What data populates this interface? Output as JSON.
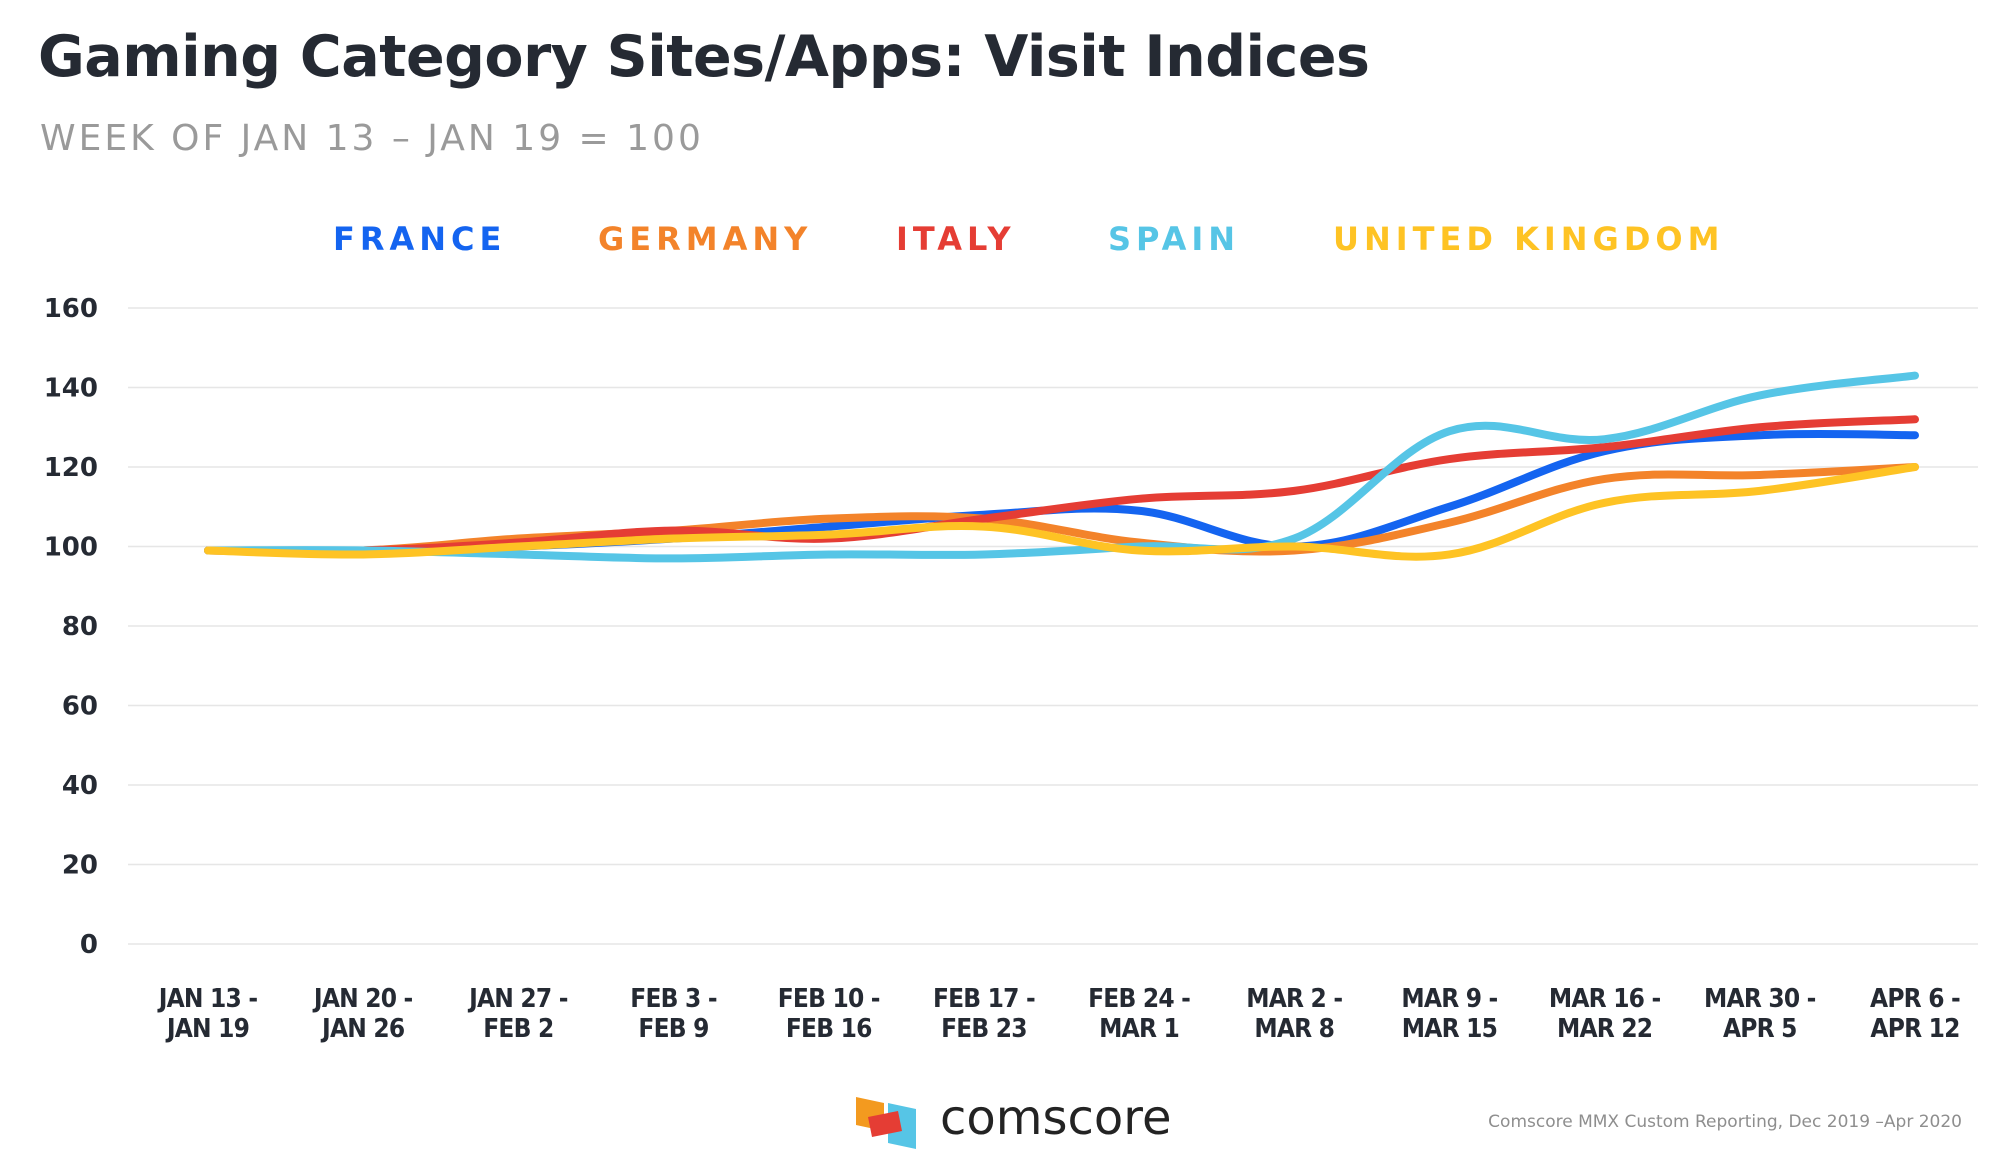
{
  "title": "Gaming Category Sites/Apps: Visit Indices",
  "subtitle": "WEEK OF JAN 13 – JAN 19 = 100",
  "source": "Comscore MMX Custom Reporting, Dec 2019 –Apr 2020",
  "brand": "comscore",
  "chart_data": {
    "type": "line",
    "title": "Gaming Category Sites/Apps: Visit Indices",
    "subtitle": "WEEK OF JAN 13 – JAN 19 = 100",
    "xlabel": "",
    "ylabel": "",
    "ylim": [
      0,
      160
    ],
    "yticks": [
      0,
      20,
      40,
      60,
      80,
      100,
      120,
      140,
      160
    ],
    "grid": true,
    "legend_position": "top",
    "categories": [
      [
        "JAN 13 -",
        "JAN 19"
      ],
      [
        "JAN 20 -",
        "JAN 26"
      ],
      [
        "JAN 27 -",
        "FEB 2"
      ],
      [
        "FEB 3 -",
        "FEB 9"
      ],
      [
        "FEB 10 -",
        "FEB 16"
      ],
      [
        "FEB 17 -",
        "FEB 23"
      ],
      [
        "FEB 24 -",
        "MAR 1"
      ],
      [
        "MAR 2 -",
        "MAR 8"
      ],
      [
        "MAR 9 -",
        "MAR 15"
      ],
      [
        "MAR 16 -",
        "MAR 22"
      ],
      [
        "MAR 30 -",
        "APR 5"
      ],
      [
        "APR 6 -",
        "APR 12"
      ]
    ],
    "series": [
      {
        "name": "FRANCE",
        "color": "#1464f0",
        "values": [
          99,
          99,
          100,
          102,
          105,
          108,
          109,
          100,
          110,
          124,
          128,
          128
        ]
      },
      {
        "name": "GERMANY",
        "color": "#f3832a",
        "values": [
          99,
          99,
          102,
          104,
          107,
          107,
          101,
          99,
          106,
          117,
          118,
          120
        ]
      },
      {
        "name": "ITALY",
        "color": "#e53d34",
        "values": [
          99,
          99,
          101,
          104,
          102,
          107,
          112,
          114,
          122,
          125,
          130,
          132
        ]
      },
      {
        "name": "SPAIN",
        "color": "#56c5e6",
        "values": [
          99,
          99,
          98,
          97,
          98,
          98,
          100,
          102,
          129,
          127,
          138,
          143
        ]
      },
      {
        "name": "UNITED KINGDOM",
        "color": "#fec324",
        "values": [
          99,
          98,
          100,
          102,
          103,
          105,
          99,
          100,
          98,
          111,
          114,
          120
        ]
      }
    ]
  }
}
